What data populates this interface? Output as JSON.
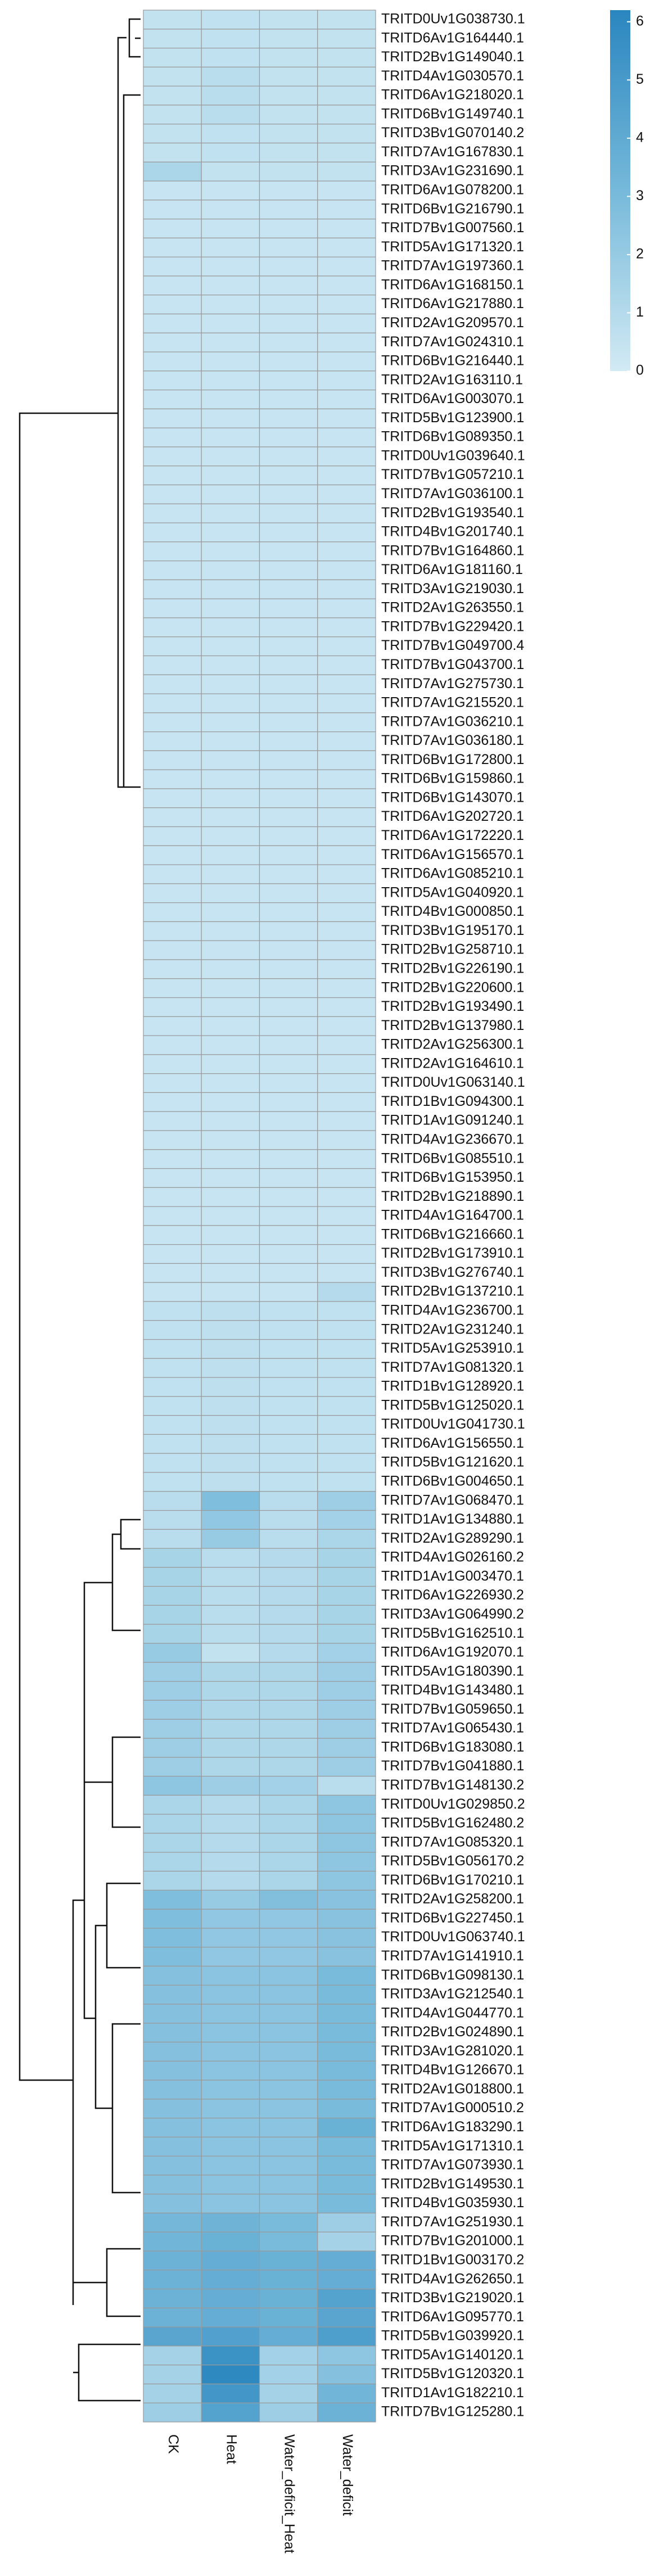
{
  "chart_data": {
    "type": "heatmap",
    "columns": [
      "CK",
      "Heat",
      "Water_deficit_Heat",
      "Water_deficit"
    ],
    "rows": [
      "TRITD0Uv1G038730.1",
      "TRITD6Av1G164440.1",
      "TRITD2Bv1G149040.1",
      "TRITD4Av1G030570.1",
      "TRITD6Av1G218020.1",
      "TRITD6Bv1G149740.1",
      "TRITD3Bv1G070140.2",
      "TRITD7Av1G167830.1",
      "TRITD3Av1G231690.1",
      "TRITD6Av1G078200.1",
      "TRITD6Bv1G216790.1",
      "TRITD7Bv1G007560.1",
      "TRITD5Av1G171320.1",
      "TRITD7Av1G197360.1",
      "TRITD6Av1G168150.1",
      "TRITD6Av1G217880.1",
      "TRITD2Av1G209570.1",
      "TRITD7Av1G024310.1",
      "TRITD6Bv1G216440.1",
      "TRITD2Av1G163110.1",
      "TRITD6Av1G003070.1",
      "TRITD5Bv1G123900.1",
      "TRITD6Bv1G089350.1",
      "TRITD0Uv1G039640.1",
      "TRITD7Bv1G057210.1",
      "TRITD7Av1G036100.1",
      "TRITD2Bv1G193540.1",
      "TRITD4Bv1G201740.1",
      "TRITD7Bv1G164860.1",
      "TRITD6Av1G181160.1",
      "TRITD3Av1G219030.1",
      "TRITD2Av1G263550.1",
      "TRITD7Bv1G229420.1",
      "TRITD7Bv1G049700.4",
      "TRITD7Bv1G043700.1",
      "TRITD7Av1G275730.1",
      "TRITD7Av1G215520.1",
      "TRITD7Av1G036210.1",
      "TRITD7Av1G036180.1",
      "TRITD6Bv1G172800.1",
      "TRITD6Bv1G159860.1",
      "TRITD6Bv1G143070.1",
      "TRITD6Av1G202720.1",
      "TRITD6Av1G172220.1",
      "TRITD6Av1G156570.1",
      "TRITD6Av1G085210.1",
      "TRITD5Av1G040920.1",
      "TRITD4Bv1G000850.1",
      "TRITD3Bv1G195170.1",
      "TRITD2Bv1G258710.1",
      "TRITD2Bv1G226190.1",
      "TRITD2Bv1G220600.1",
      "TRITD2Bv1G193490.1",
      "TRITD2Bv1G137980.1",
      "TRITD2Av1G256300.1",
      "TRITD2Av1G164610.1",
      "TRITD0Uv1G063140.1",
      "TRITD1Bv1G094300.1",
      "TRITD1Av1G091240.1",
      "TRITD4Av1G236670.1",
      "TRITD6Bv1G085510.1",
      "TRITD6Bv1G153950.1",
      "TRITD2Bv1G218890.1",
      "TRITD4Av1G164700.1",
      "TRITD6Bv1G216660.1",
      "TRITD2Bv1G173910.1",
      "TRITD3Bv1G276740.1",
      "TRITD2Bv1G137210.1",
      "TRITD4Av1G236700.1",
      "TRITD2Av1G231240.1",
      "TRITD5Av1G253910.1",
      "TRITD7Av1G081320.1",
      "TRITD1Bv1G128920.1",
      "TRITD5Bv1G125020.1",
      "TRITD0Uv1G041730.1",
      "TRITD6Av1G156550.1",
      "TRITD5Bv1G121620.1",
      "TRITD6Bv1G004650.1",
      "TRITD7Av1G068470.1",
      "TRITD1Av1G134880.1",
      "TRITD2Av1G289290.1",
      "TRITD4Av1G026160.2",
      "TRITD1Av1G003470.1",
      "TRITD6Av1G226930.2",
      "TRITD3Av1G064990.2",
      "TRITD5Bv1G162510.1",
      "TRITD6Av1G192070.1",
      "TRITD5Av1G180390.1",
      "TRITD4Bv1G143480.1",
      "TRITD7Bv1G059650.1",
      "TRITD7Av1G065430.1",
      "TRITD6Bv1G183080.1",
      "TRITD7Bv1G041880.1",
      "TRITD7Bv1G148130.2",
      "TRITD0Uv1G029850.2",
      "TRITD5Bv1G162480.2",
      "TRITD7Av1G085320.1",
      "TRITD5Bv1G056170.2",
      "TRITD6Bv1G170210.1",
      "TRITD2Av1G258200.1",
      "TRITD6Bv1G227450.1",
      "TRITD0Uv1G063740.1",
      "TRITD7Av1G141910.1",
      "TRITD6Bv1G098130.1",
      "TRITD3Av1G212540.1",
      "TRITD4Av1G044770.1",
      "TRITD2Bv1G024890.1",
      "TRITD3Av1G281020.1",
      "TRITD4Bv1G126670.1",
      "TRITD2Av1G018800.1",
      "TRITD7Av1G000510.2",
      "TRITD6Av1G183290.1",
      "TRITD5Av1G171310.1",
      "TRITD7Av1G073930.1",
      "TRITD2Bv1G149530.1",
      "TRITD4Bv1G035930.1",
      "TRITD7Av1G251930.1",
      "TRITD7Bv1G201000.1",
      "TRITD1Bv1G003170.2",
      "TRITD4Av1G262650.1",
      "TRITD3Bv1G219020.1",
      "TRITD6Av1G095770.1",
      "TRITD5Bv1G039920.1",
      "TRITD5Av1G140120.1",
      "TRITD5Bv1G120320.1",
      "TRITD1Av1G182210.1",
      "TRITD7Bv1G125280.1"
    ],
    "values": [
      [
        0.5,
        0.6,
        0.5,
        0.5
      ],
      [
        0.5,
        0.6,
        0.5,
        0.5
      ],
      [
        0.5,
        0.6,
        0.5,
        0.5
      ],
      [
        0.5,
        0.8,
        0.5,
        0.5
      ],
      [
        0.5,
        0.8,
        0.5,
        0.5
      ],
      [
        0.5,
        0.8,
        0.5,
        0.5
      ],
      [
        0.5,
        0.6,
        0.5,
        0.5
      ],
      [
        0.5,
        0.6,
        0.5,
        0.5
      ],
      [
        1.3,
        0.5,
        0.5,
        0.5
      ],
      [
        0.4,
        0.4,
        0.4,
        0.4
      ],
      [
        0.4,
        0.4,
        0.4,
        0.4
      ],
      [
        0.4,
        0.4,
        0.4,
        0.4
      ],
      [
        0.4,
        0.4,
        0.4,
        0.4
      ],
      [
        0.4,
        0.4,
        0.4,
        0.4
      ],
      [
        0.4,
        0.4,
        0.4,
        0.4
      ],
      [
        0.4,
        0.4,
        0.4,
        0.4
      ],
      [
        0.4,
        0.4,
        0.4,
        0.4
      ],
      [
        0.4,
        0.4,
        0.4,
        0.4
      ],
      [
        0.4,
        0.4,
        0.4,
        0.4
      ],
      [
        0.4,
        0.4,
        0.4,
        0.4
      ],
      [
        0.4,
        0.4,
        0.4,
        0.4
      ],
      [
        0.4,
        0.4,
        0.4,
        0.4
      ],
      [
        0.4,
        0.4,
        0.4,
        0.4
      ],
      [
        0.4,
        0.4,
        0.4,
        0.4
      ],
      [
        0.4,
        0.4,
        0.4,
        0.4
      ],
      [
        0.4,
        0.4,
        0.4,
        0.4
      ],
      [
        0.4,
        0.4,
        0.4,
        0.4
      ],
      [
        0.4,
        0.4,
        0.4,
        0.4
      ],
      [
        0.4,
        0.4,
        0.4,
        0.4
      ],
      [
        0.4,
        0.4,
        0.4,
        0.4
      ],
      [
        0.4,
        0.4,
        0.4,
        0.4
      ],
      [
        0.4,
        0.4,
        0.4,
        0.4
      ],
      [
        0.4,
        0.4,
        0.4,
        0.4
      ],
      [
        0.4,
        0.4,
        0.4,
        0.4
      ],
      [
        0.4,
        0.4,
        0.4,
        0.4
      ],
      [
        0.4,
        0.4,
        0.4,
        0.4
      ],
      [
        0.4,
        0.4,
        0.4,
        0.4
      ],
      [
        0.4,
        0.4,
        0.4,
        0.4
      ],
      [
        0.4,
        0.4,
        0.4,
        0.4
      ],
      [
        0.4,
        0.4,
        0.4,
        0.4
      ],
      [
        0.4,
        0.4,
        0.4,
        0.4
      ],
      [
        0.4,
        0.4,
        0.4,
        0.4
      ],
      [
        0.4,
        0.4,
        0.4,
        0.4
      ],
      [
        0.4,
        0.4,
        0.4,
        0.4
      ],
      [
        0.4,
        0.4,
        0.4,
        0.4
      ],
      [
        0.4,
        0.4,
        0.4,
        0.4
      ],
      [
        0.4,
        0.4,
        0.4,
        0.4
      ],
      [
        0.4,
        0.4,
        0.4,
        0.4
      ],
      [
        0.4,
        0.4,
        0.4,
        0.4
      ],
      [
        0.4,
        0.4,
        0.4,
        0.4
      ],
      [
        0.4,
        0.4,
        0.4,
        0.4
      ],
      [
        0.4,
        0.4,
        0.4,
        0.4
      ],
      [
        0.4,
        0.4,
        0.4,
        0.4
      ],
      [
        0.4,
        0.4,
        0.4,
        0.4
      ],
      [
        0.4,
        0.4,
        0.4,
        0.4
      ],
      [
        0.4,
        0.4,
        0.4,
        0.4
      ],
      [
        0.4,
        0.4,
        0.4,
        0.4
      ],
      [
        0.4,
        0.4,
        0.4,
        0.4
      ],
      [
        0.4,
        0.4,
        0.4,
        0.4
      ],
      [
        0.4,
        0.4,
        0.4,
        0.4
      ],
      [
        0.4,
        0.4,
        0.4,
        0.4
      ],
      [
        0.4,
        0.4,
        0.4,
        0.4
      ],
      [
        0.4,
        0.4,
        0.4,
        0.4
      ],
      [
        0.4,
        0.4,
        0.4,
        0.4
      ],
      [
        0.4,
        0.4,
        0.4,
        0.4
      ],
      [
        0.4,
        0.4,
        0.4,
        0.4
      ],
      [
        0.4,
        0.4,
        0.4,
        0.4
      ],
      [
        0.4,
        0.4,
        0.4,
        1.0
      ],
      [
        0.6,
        0.7,
        0.6,
        0.6
      ],
      [
        0.6,
        0.7,
        0.6,
        0.6
      ],
      [
        0.6,
        0.7,
        0.6,
        0.6
      ],
      [
        0.6,
        0.7,
        0.6,
        0.6
      ],
      [
        0.6,
        0.7,
        0.6,
        0.6
      ],
      [
        0.6,
        0.7,
        0.6,
        0.6
      ],
      [
        0.6,
        0.7,
        0.6,
        0.6
      ],
      [
        0.6,
        0.7,
        0.6,
        0.6
      ],
      [
        0.6,
        0.7,
        0.6,
        0.6
      ],
      [
        0.6,
        0.7,
        0.6,
        0.6
      ],
      [
        0.8,
        2.8,
        0.8,
        1.8
      ],
      [
        0.8,
        2.2,
        0.8,
        1.6
      ],
      [
        0.8,
        2.0,
        0.8,
        1.3
      ],
      [
        1.4,
        0.8,
        1.0,
        1.4
      ],
      [
        1.4,
        0.8,
        1.0,
        1.4
      ],
      [
        1.4,
        0.8,
        1.0,
        1.4
      ],
      [
        1.4,
        0.8,
        1.0,
        1.4
      ],
      [
        1.4,
        0.8,
        1.0,
        1.4
      ],
      [
        2.0,
        0.5,
        1.0,
        1.6
      ],
      [
        1.8,
        1.2,
        1.2,
        1.8
      ],
      [
        1.8,
        1.2,
        1.2,
        1.8
      ],
      [
        1.8,
        1.2,
        1.2,
        1.8
      ],
      [
        1.8,
        1.2,
        1.2,
        1.8
      ],
      [
        1.8,
        1.2,
        1.2,
        1.8
      ],
      [
        1.8,
        1.2,
        1.2,
        1.8
      ],
      [
        2.3,
        1.8,
        1.6,
        0.8
      ],
      [
        1.3,
        1.0,
        1.3,
        2.3
      ],
      [
        1.3,
        1.0,
        1.3,
        2.3
      ],
      [
        1.3,
        1.0,
        1.3,
        2.3
      ],
      [
        1.3,
        1.0,
        1.3,
        2.3
      ],
      [
        1.3,
        1.0,
        1.3,
        2.3
      ],
      [
        2.8,
        2.0,
        2.7,
        2.5
      ],
      [
        2.8,
        2.2,
        2.2,
        2.5
      ],
      [
        2.8,
        2.2,
        2.2,
        2.5
      ],
      [
        2.8,
        2.2,
        2.2,
        2.5
      ],
      [
        2.6,
        2.4,
        2.4,
        3.0
      ],
      [
        2.6,
        2.4,
        2.4,
        3.0
      ],
      [
        2.6,
        2.4,
        2.4,
        3.0
      ],
      [
        2.6,
        2.4,
        2.4,
        3.0
      ],
      [
        2.6,
        2.4,
        2.4,
        3.0
      ],
      [
        2.6,
        2.4,
        2.4,
        3.0
      ],
      [
        2.6,
        2.4,
        2.4,
        3.0
      ],
      [
        2.6,
        2.4,
        2.4,
        3.0
      ],
      [
        2.6,
        2.4,
        2.4,
        3.6
      ],
      [
        2.6,
        2.4,
        2.4,
        3.0
      ],
      [
        2.6,
        2.4,
        2.4,
        3.0
      ],
      [
        2.6,
        2.4,
        2.4,
        3.0
      ],
      [
        2.6,
        2.4,
        2.4,
        3.0
      ],
      [
        3.2,
        3.4,
        3.0,
        1.8
      ],
      [
        3.3,
        3.6,
        3.0,
        1.5
      ],
      [
        3.5,
        3.8,
        3.6,
        3.8
      ],
      [
        3.5,
        3.8,
        3.6,
        3.8
      ],
      [
        3.5,
        3.8,
        3.6,
        4.5
      ],
      [
        3.5,
        3.8,
        3.6,
        4.3
      ],
      [
        4.3,
        4.6,
        3.8,
        4.7
      ],
      [
        1.5,
        5.5,
        1.6,
        2.3
      ],
      [
        1.5,
        6.0,
        1.6,
        2.6
      ],
      [
        1.5,
        5.2,
        1.5,
        3.3
      ],
      [
        1.8,
        4.5,
        1.8,
        3.5
      ]
    ],
    "colorbar": {
      "lim": [
        0,
        6.2
      ],
      "ticks": [
        0,
        1,
        2,
        3,
        4,
        5,
        6
      ],
      "colors": [
        "#d2eaf4",
        "#76b9da",
        "#2a86bf"
      ]
    }
  }
}
